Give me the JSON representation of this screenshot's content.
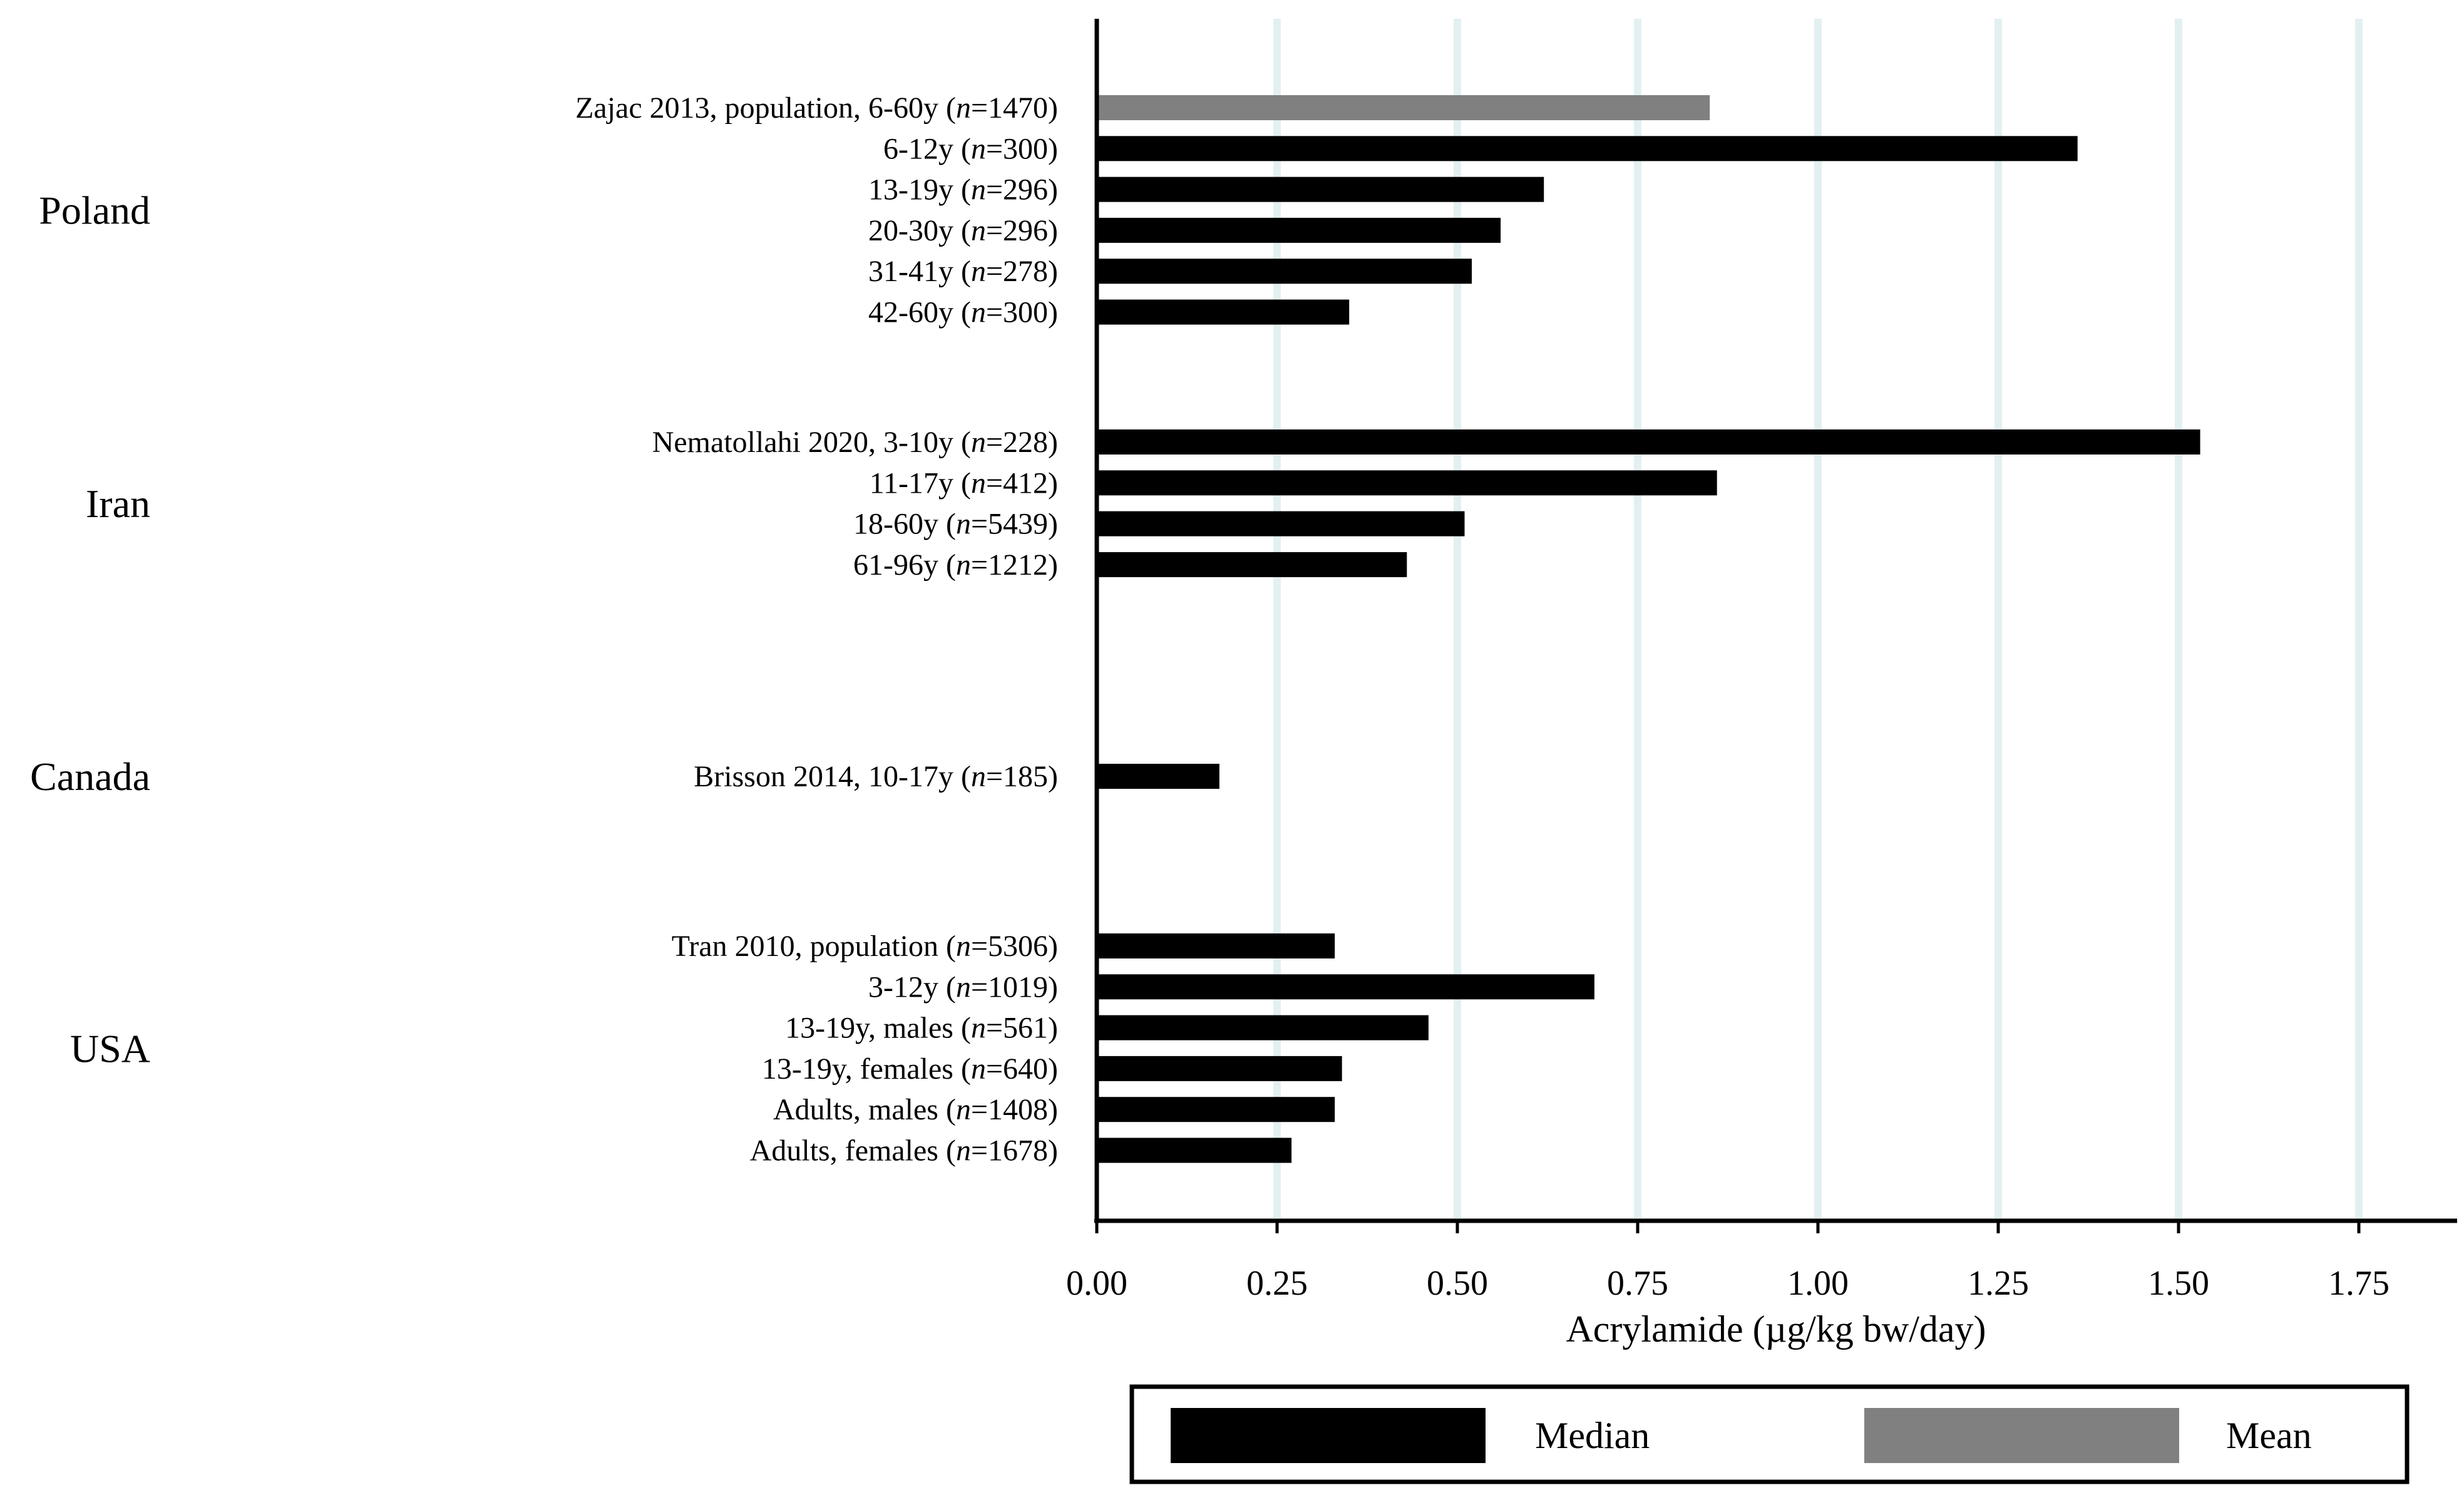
{
  "chart_data": {
    "type": "bar",
    "orientation": "horizontal",
    "xlabel": "Acrylamide (µg/kg bw/day)",
    "xlim": [
      0,
      1.875
    ],
    "x_ticks": [
      "0.00",
      "0.25",
      "0.50",
      "0.75",
      "1.00",
      "1.25",
      "1.50",
      "1.75"
    ],
    "grid": "vertical",
    "legend": [
      {
        "name": "Median",
        "color": "#000000"
      },
      {
        "name": "Mean",
        "color": "#808080"
      }
    ],
    "groups": [
      {
        "name": "Poland",
        "bars": [
          {
            "label": "Zajac 2013, population, 6-60y",
            "n": "1470",
            "value": 0.85,
            "stat": "Mean"
          },
          {
            "label": "6-12y",
            "n": "300",
            "value": 1.36,
            "stat": "Median"
          },
          {
            "label": "13-19y",
            "n": "296",
            "value": 0.62,
            "stat": "Median"
          },
          {
            "label": "20-30y",
            "n": "296",
            "value": 0.56,
            "stat": "Median"
          },
          {
            "label": "31-41y",
            "n": "278",
            "value": 0.52,
            "stat": "Median"
          },
          {
            "label": "42-60y",
            "n": "300",
            "value": 0.35,
            "stat": "Median"
          }
        ]
      },
      {
        "name": "Iran",
        "bars": [
          {
            "label": "Nematollahi 2020, 3-10y",
            "n": "228",
            "value": 1.53,
            "stat": "Median"
          },
          {
            "label": "11-17y",
            "n": "412",
            "value": 0.86,
            "stat": "Median"
          },
          {
            "label": "18-60y",
            "n": "5439",
            "value": 0.51,
            "stat": "Median"
          },
          {
            "label": "61-96y",
            "n": "1212",
            "value": 0.43,
            "stat": "Median"
          }
        ]
      },
      {
        "name": "Canada",
        "bars": [
          {
            "label": "Brisson 2014, 10-17y",
            "n": "185",
            "value": 0.17,
            "stat": "Median"
          }
        ]
      },
      {
        "name": "USA",
        "bars": [
          {
            "label": "Tran 2010, population",
            "n": "5306",
            "value": 0.33,
            "stat": "Median"
          },
          {
            "label": "3-12y",
            "n": "1019",
            "value": 0.69,
            "stat": "Median"
          },
          {
            "label": "13-19y, males",
            "n": "561",
            "value": 0.46,
            "stat": "Median"
          },
          {
            "label": "13-19y, females",
            "n": "640",
            "value": 0.34,
            "stat": "Median"
          },
          {
            "label": "Adults, males",
            "n": "1408",
            "value": 0.33,
            "stat": "Median"
          },
          {
            "label": "Adults, females",
            "n": "1678",
            "value": 0.27,
            "stat": "Median"
          }
        ]
      }
    ]
  }
}
